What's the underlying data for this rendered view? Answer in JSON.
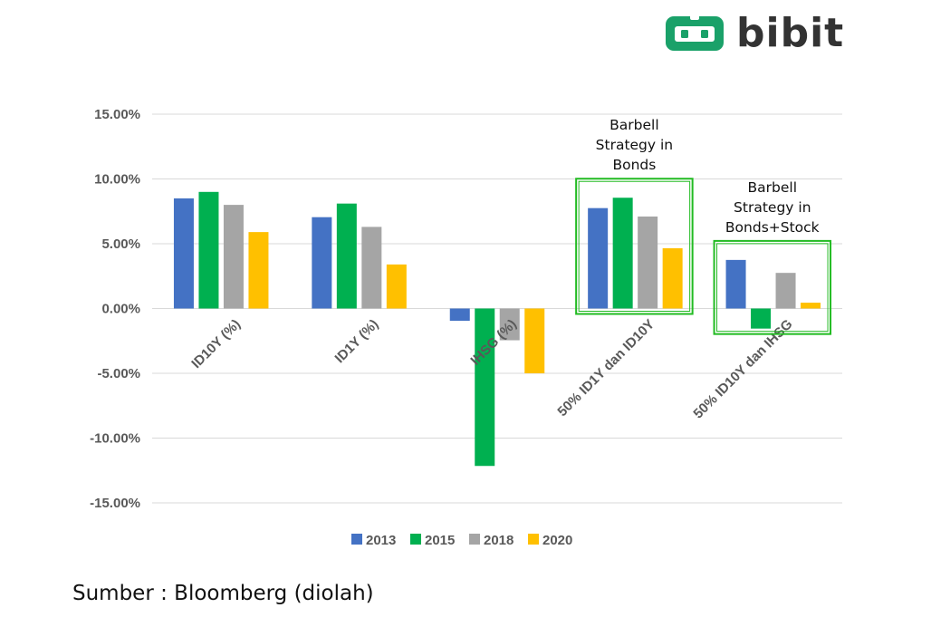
{
  "brand": {
    "name": "bibit",
    "color": "#1aa169"
  },
  "source_text": "Sumber : Bloomberg (diolah)",
  "chart_data": {
    "type": "bar",
    "title": "",
    "xlabel": "",
    "ylabel": "",
    "ylim": [
      -15,
      15
    ],
    "yticks": [
      15,
      10,
      5,
      0,
      -5,
      -10,
      -15
    ],
    "ytick_labels": [
      "15.00%",
      "10.00%",
      "5.00%",
      "0.00%",
      "-5.00%",
      "-10.00%",
      "-15.00%"
    ],
    "grid": true,
    "categories": [
      "ID10Y (%)",
      "ID1Y (%)",
      "IHSG (%)",
      "50% ID1Y dan ID10Y",
      "50% ID10Y dan IHSG"
    ],
    "series": [
      {
        "name": "2013",
        "color": "#4472c4",
        "values": [
          8.5,
          7.05,
          -0.95,
          7.75,
          3.75
        ]
      },
      {
        "name": "2015",
        "color": "#00b050",
        "values": [
          9.0,
          8.1,
          -12.15,
          8.55,
          -1.55
        ]
      },
      {
        "name": "2018",
        "color": "#a5a5a5",
        "values": [
          8.0,
          6.3,
          -2.45,
          7.1,
          2.75
        ]
      },
      {
        "name": "2020",
        "color": "#ffc000",
        "values": [
          5.9,
          3.4,
          -5.0,
          4.65,
          0.45
        ]
      }
    ],
    "legend_position": "bottom",
    "annotations": [
      {
        "lines": [
          "Barbell",
          "Strategy in",
          "Bonds"
        ],
        "category": 3,
        "box_color": "#22bb22"
      },
      {
        "lines": [
          "Barbell",
          "Strategy in",
          "Bonds+Stock"
        ],
        "category": 4,
        "box_color": "#22bb22"
      }
    ]
  }
}
